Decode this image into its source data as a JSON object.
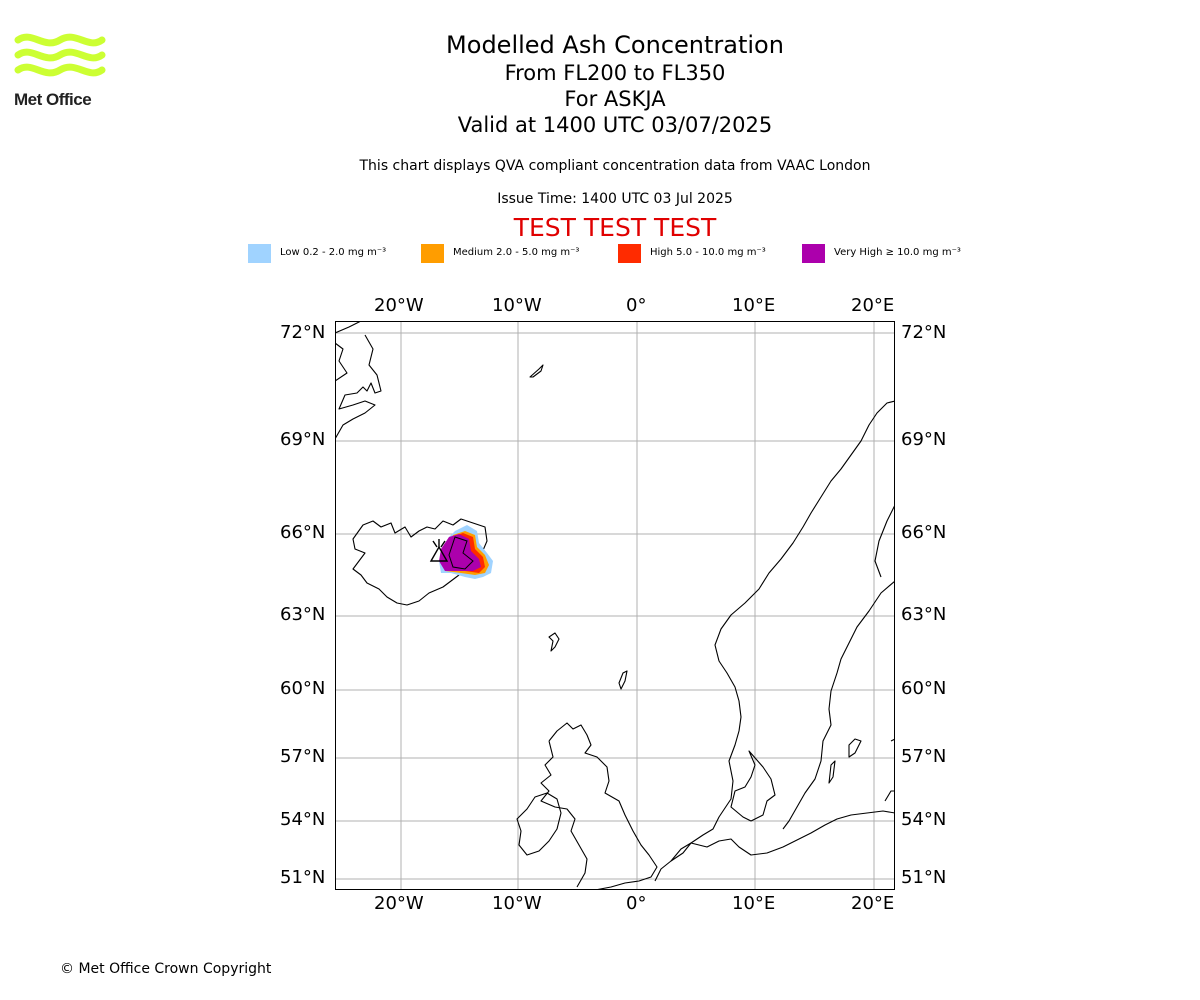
{
  "logo": {
    "text": "Met Office",
    "color": "#ccff33"
  },
  "title": {
    "line1": "Modelled Ash Concentration",
    "line2": "From FL200 to FL350",
    "line3": "For ASKJA",
    "line4": "Valid at 1400 UTC 03/07/2025"
  },
  "description": "This chart displays QVA compliant concentration data from VAAC London",
  "issue_time": "Issue Time: 1400 UTC 03 Jul 2025",
  "test_banner": "TEST TEST TEST",
  "legend": [
    {
      "label": "Low 0.2 - 2.0 mg m⁻³",
      "color": "#a0d3ff"
    },
    {
      "label": "Medium 2.0 - 5.0 mg m⁻³",
      "color": "#ff9d00"
    },
    {
      "label": "High 5.0 - 10.0 mg m⁻³",
      "color": "#ff2b00"
    },
    {
      "label": "Very High  ≥  10.0 mg m⁻³",
      "color": "#ac00ac"
    }
  ],
  "map": {
    "lon_labels": [
      "20°W",
      "10°W",
      "0°",
      "10°E",
      "20°E"
    ],
    "lat_labels": [
      "72°N",
      "69°N",
      "66°N",
      "63°N",
      "60°N",
      "57°N",
      "54°N",
      "51°N"
    ],
    "gridlines": true,
    "volcano": "ASKJA"
  },
  "copyright": "© Met Office Crown Copyright"
}
